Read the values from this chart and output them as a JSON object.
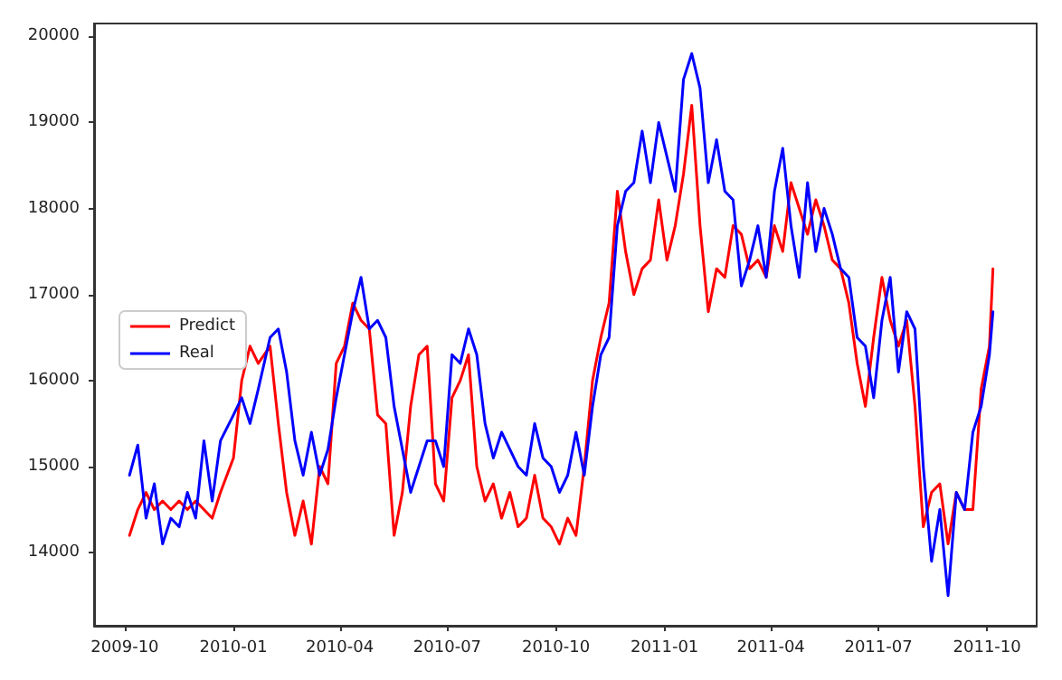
{
  "chart_data": {
    "type": "line",
    "x": [
      "2009-10-05",
      "2009-10-12",
      "2009-10-19",
      "2009-10-26",
      "2009-11-02",
      "2009-11-09",
      "2009-11-16",
      "2009-11-23",
      "2009-11-30",
      "2009-12-07",
      "2009-12-14",
      "2009-12-21",
      "2010-01-01",
      "2010-01-08",
      "2010-01-15",
      "2010-01-22",
      "2010-02-01",
      "2010-02-08",
      "2010-02-15",
      "2010-02-22",
      "2010-03-01",
      "2010-03-08",
      "2010-03-15",
      "2010-03-22",
      "2010-03-29",
      "2010-04-05",
      "2010-04-12",
      "2010-04-19",
      "2010-04-26",
      "2010-05-03",
      "2010-05-10",
      "2010-05-17",
      "2010-05-24",
      "2010-05-31",
      "2010-06-07",
      "2010-06-14",
      "2010-06-21",
      "2010-06-28",
      "2010-07-05",
      "2010-07-12",
      "2010-07-19",
      "2010-07-26",
      "2010-08-02",
      "2010-08-09",
      "2010-08-16",
      "2010-08-23",
      "2010-08-30",
      "2010-09-06",
      "2010-09-13",
      "2010-09-20",
      "2010-09-27",
      "2010-10-04",
      "2010-10-11",
      "2010-10-18",
      "2010-10-25",
      "2010-11-01",
      "2010-11-08",
      "2010-11-15",
      "2010-11-22",
      "2010-11-29",
      "2010-12-06",
      "2010-12-13",
      "2010-12-20",
      "2010-12-27",
      "2011-01-03",
      "2011-01-10",
      "2011-01-17",
      "2011-01-24",
      "2011-01-31",
      "2011-02-07",
      "2011-02-14",
      "2011-02-21",
      "2011-02-28",
      "2011-03-07",
      "2011-03-14",
      "2011-03-21",
      "2011-03-28",
      "2011-04-04",
      "2011-04-11",
      "2011-04-18",
      "2011-04-25",
      "2011-05-02",
      "2011-05-09",
      "2011-05-16",
      "2011-05-23",
      "2011-05-30",
      "2011-06-06",
      "2011-06-13",
      "2011-06-20",
      "2011-06-27",
      "2011-07-04",
      "2011-07-11",
      "2011-07-18",
      "2011-07-25",
      "2011-08-01",
      "2011-08-08",
      "2011-08-15",
      "2011-08-22",
      "2011-08-29",
      "2011-09-05",
      "2011-09-12",
      "2011-09-19",
      "2011-09-26",
      "2011-10-03",
      "2011-10-06"
    ],
    "series": [
      {
        "name": "Predict",
        "color": "#ff0000",
        "values": [
          14200,
          14500,
          14700,
          14500,
          14600,
          14500,
          14600,
          14500,
          14600,
          14500,
          14400,
          14700,
          15100,
          16000,
          16400,
          16200,
          16400,
          15500,
          14700,
          14200,
          14600,
          14100,
          15000,
          14800,
          16200,
          16400,
          16900,
          16700,
          16600,
          15600,
          15500,
          14200,
          14700,
          15700,
          16300,
          16400,
          14800,
          14600,
          15800,
          16000,
          16300,
          15000,
          14600,
          14800,
          14400,
          14700,
          14300,
          14400,
          14900,
          14400,
          14300,
          14100,
          14400,
          14200,
          15000,
          16000,
          16500,
          16900,
          18200,
          17500,
          17000,
          17300,
          17400,
          18100,
          17400,
          17800,
          18400,
          19200,
          17800,
          16800,
          17300,
          17200,
          17800,
          17700,
          17300,
          17400,
          17200,
          17800,
          17500,
          18300,
          18000,
          17700,
          18100,
          17800,
          17400,
          17300,
          16900,
          16200,
          15700,
          16500,
          17200,
          16700,
          16400,
          16700,
          15700,
          14300,
          14700,
          14800,
          14100,
          14700,
          14500,
          14500,
          15900,
          16400,
          17300
        ]
      },
      {
        "name": "Real",
        "color": "#0000ff",
        "values": [
          14900,
          15250,
          14400,
          14800,
          14100,
          14400,
          14300,
          14700,
          14400,
          15300,
          14600,
          15300,
          15600,
          15800,
          15500,
          15900,
          16500,
          16600,
          16100,
          15300,
          14900,
          15400,
          14900,
          15200,
          15800,
          16300,
          16800,
          17200,
          16600,
          16700,
          16500,
          15700,
          15200,
          14700,
          15000,
          15300,
          15300,
          15000,
          16300,
          16200,
          16600,
          16300,
          15500,
          15100,
          15400,
          15200,
          15000,
          14900,
          15500,
          15100,
          15000,
          14700,
          14900,
          15400,
          14900,
          15700,
          16300,
          16500,
          17800,
          18200,
          18300,
          18900,
          18300,
          19000,
          18600,
          18200,
          19500,
          19800,
          19400,
          18300,
          18800,
          18200,
          18100,
          17100,
          17400,
          17800,
          17200,
          18200,
          18700,
          17800,
          17200,
          18300,
          17500,
          18000,
          17700,
          17300,
          17200,
          16500,
          16400,
          15800,
          16700,
          17200,
          16100,
          16800,
          16600,
          15000,
          13900,
          14500,
          13500,
          14700,
          14500,
          15400,
          15700,
          16300,
          16800
        ]
      }
    ],
    "xlim": [
      "2009-09-05",
      "2011-11-12"
    ],
    "ylim": [
      13150,
      20150
    ],
    "xticks": [
      "2009-10",
      "2010-01",
      "2010-04",
      "2010-07",
      "2010-10",
      "2011-01",
      "2011-04",
      "2011-07",
      "2011-10"
    ],
    "yticks": [
      14000,
      15000,
      16000,
      17000,
      18000,
      19000,
      20000
    ],
    "legend": "left",
    "grid": false,
    "marker": "none",
    "line_style": "solid"
  }
}
